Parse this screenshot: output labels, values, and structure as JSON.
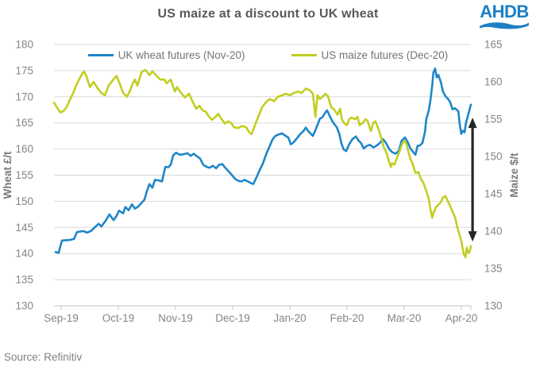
{
  "header": {
    "logo_text": "AHDB"
  },
  "footer": {
    "source": "Source: Refinitiv"
  },
  "chart_data": {
    "type": "line",
    "title": "US maize at a discount to UK wheat",
    "legend_position": "top",
    "grid": "horizontal",
    "left_axis": {
      "label": "Wheat £/t",
      "min": 130,
      "max": 180,
      "step": 5,
      "ticks": [
        180,
        175,
        170,
        165,
        160,
        155,
        150,
        145,
        140,
        135,
        130
      ]
    },
    "right_axis": {
      "label": "Maize $/t",
      "min": 130,
      "max": 165,
      "step": 5,
      "ticks": [
        165,
        160,
        155,
        150,
        145,
        140,
        135,
        130
      ]
    },
    "x_ticks": [
      "Sep-19",
      "Oct-19",
      "Nov-19",
      "Dec-19",
      "Jan-20",
      "Feb-20",
      "Mar-20",
      "Apr-20"
    ],
    "series": [
      {
        "name": "UK wheat futures (Nov-20)",
        "color": "#1e86c8",
        "axis": "left",
        "points": [
          [
            0.004,
            140.3
          ],
          [
            0.011,
            140.1
          ],
          [
            0.019,
            142.5
          ],
          [
            0.038,
            142.6
          ],
          [
            0.048,
            142.8
          ],
          [
            0.055,
            144.1
          ],
          [
            0.07,
            144.3
          ],
          [
            0.08,
            144.0
          ],
          [
            0.09,
            144.4
          ],
          [
            0.099,
            145.1
          ],
          [
            0.107,
            145.7
          ],
          [
            0.114,
            145.2
          ],
          [
            0.124,
            146.3
          ],
          [
            0.133,
            147.5
          ],
          [
            0.143,
            146.4
          ],
          [
            0.15,
            147.2
          ],
          [
            0.156,
            148.2
          ],
          [
            0.166,
            147.7
          ],
          [
            0.171,
            148.9
          ],
          [
            0.179,
            148.3
          ],
          [
            0.187,
            149.4
          ],
          [
            0.194,
            148.6
          ],
          [
            0.202,
            149.0
          ],
          [
            0.21,
            149.7
          ],
          [
            0.217,
            150.3
          ],
          [
            0.223,
            152.0
          ],
          [
            0.229,
            153.3
          ],
          [
            0.236,
            152.6
          ],
          [
            0.242,
            154.1
          ],
          [
            0.251,
            154.0
          ],
          [
            0.259,
            153.8
          ],
          [
            0.267,
            156.6
          ],
          [
            0.274,
            156.5
          ],
          [
            0.28,
            157.0
          ],
          [
            0.286,
            158.8
          ],
          [
            0.293,
            159.3
          ],
          [
            0.301,
            158.9
          ],
          [
            0.31,
            159.0
          ],
          [
            0.32,
            159.2
          ],
          [
            0.328,
            158.7
          ],
          [
            0.335,
            159.1
          ],
          [
            0.343,
            158.6
          ],
          [
            0.35,
            158.2
          ],
          [
            0.358,
            157.0
          ],
          [
            0.366,
            156.6
          ],
          [
            0.373,
            156.4
          ],
          [
            0.381,
            156.8
          ],
          [
            0.389,
            156.3
          ],
          [
            0.396,
            157.0
          ],
          [
            0.404,
            157.1
          ],
          [
            0.411,
            156.4
          ],
          [
            0.419,
            155.7
          ],
          [
            0.427,
            155.0
          ],
          [
            0.434,
            154.3
          ],
          [
            0.442,
            153.9
          ],
          [
            0.45,
            153.8
          ],
          [
            0.457,
            154.1
          ],
          [
            0.465,
            153.8
          ],
          [
            0.472,
            153.5
          ],
          [
            0.478,
            153.3
          ],
          [
            0.486,
            154.6
          ],
          [
            0.493,
            155.9
          ],
          [
            0.501,
            157.2
          ],
          [
            0.509,
            159.0
          ],
          [
            0.516,
            160.3
          ],
          [
            0.524,
            161.8
          ],
          [
            0.531,
            162.5
          ],
          [
            0.539,
            162.8
          ],
          [
            0.547,
            163.0
          ],
          [
            0.554,
            162.6
          ],
          [
            0.562,
            162.2
          ],
          [
            0.568,
            160.9
          ],
          [
            0.575,
            161.3
          ],
          [
            0.583,
            162.1
          ],
          [
            0.59,
            162.8
          ],
          [
            0.598,
            163.4
          ],
          [
            0.604,
            164.1
          ],
          [
            0.61,
            163.4
          ],
          [
            0.615,
            163.0
          ],
          [
            0.621,
            162.5
          ],
          [
            0.627,
            163.6
          ],
          [
            0.632,
            164.6
          ],
          [
            0.638,
            165.8
          ],
          [
            0.644,
            166.1
          ],
          [
            0.65,
            166.9
          ],
          [
            0.655,
            167.4
          ],
          [
            0.661,
            166.4
          ],
          [
            0.667,
            165.4
          ],
          [
            0.672,
            164.8
          ],
          [
            0.678,
            164.2
          ],
          [
            0.684,
            163.0
          ],
          [
            0.69,
            160.9
          ],
          [
            0.695,
            159.9
          ],
          [
            0.701,
            159.6
          ],
          [
            0.708,
            160.9
          ],
          [
            0.716,
            161.9
          ],
          [
            0.724,
            162.4
          ],
          [
            0.731,
            161.6
          ],
          [
            0.737,
            161.1
          ],
          [
            0.743,
            160.1
          ],
          [
            0.75,
            160.6
          ],
          [
            0.758,
            160.8
          ],
          [
            0.766,
            160.3
          ],
          [
            0.773,
            160.6
          ],
          [
            0.781,
            161.1
          ],
          [
            0.789,
            161.9
          ],
          [
            0.796,
            161.2
          ],
          [
            0.804,
            160.0
          ],
          [
            0.811,
            159.4
          ],
          [
            0.819,
            159.1
          ],
          [
            0.827,
            159.6
          ],
          [
            0.834,
            161.6
          ],
          [
            0.842,
            162.2
          ],
          [
            0.848,
            161.4
          ],
          [
            0.855,
            160.1
          ],
          [
            0.861,
            159.5
          ],
          [
            0.867,
            158.9
          ],
          [
            0.872,
            160.6
          ],
          [
            0.878,
            160.7
          ],
          [
            0.884,
            161.2
          ],
          [
            0.89,
            163.4
          ],
          [
            0.893,
            165.7
          ],
          [
            0.899,
            167.4
          ],
          [
            0.903,
            169.4
          ],
          [
            0.907,
            172.0
          ],
          [
            0.91,
            174.6
          ],
          [
            0.914,
            175.4
          ],
          [
            0.918,
            173.7
          ],
          [
            0.922,
            174.2
          ],
          [
            0.928,
            172.8
          ],
          [
            0.933,
            171.0
          ],
          [
            0.939,
            170.1
          ],
          [
            0.945,
            169.6
          ],
          [
            0.95,
            169.0
          ],
          [
            0.956,
            167.6
          ],
          [
            0.962,
            167.8
          ],
          [
            0.97,
            167.2
          ],
          [
            0.973,
            164.9
          ],
          [
            0.977,
            162.9
          ],
          [
            0.981,
            163.5
          ],
          [
            0.985,
            163.2
          ],
          [
            0.988,
            164.9
          ],
          [
            0.992,
            166.1
          ],
          [
            0.996,
            167.3
          ],
          [
            1.0,
            168.5
          ]
        ]
      },
      {
        "name": "US maize futures (Dec-20)",
        "color": "#c2ce21",
        "axis": "right",
        "points": [
          [
            0.0,
            157.2
          ],
          [
            0.008,
            156.5
          ],
          [
            0.015,
            155.9
          ],
          [
            0.023,
            156.1
          ],
          [
            0.03,
            156.6
          ],
          [
            0.038,
            157.6
          ],
          [
            0.046,
            158.5
          ],
          [
            0.053,
            159.5
          ],
          [
            0.061,
            160.4
          ],
          [
            0.069,
            161.2
          ],
          [
            0.072,
            161.4
          ],
          [
            0.078,
            160.7
          ],
          [
            0.086,
            159.3
          ],
          [
            0.095,
            160.0
          ],
          [
            0.105,
            159.1
          ],
          [
            0.114,
            158.5
          ],
          [
            0.122,
            158.2
          ],
          [
            0.131,
            159.5
          ],
          [
            0.141,
            160.2
          ],
          [
            0.15,
            160.8
          ],
          [
            0.156,
            160.0
          ],
          [
            0.166,
            158.5
          ],
          [
            0.175,
            158.0
          ],
          [
            0.183,
            158.9
          ],
          [
            0.189,
            159.8
          ],
          [
            0.194,
            160.3
          ],
          [
            0.2,
            159.5
          ],
          [
            0.21,
            161.3
          ],
          [
            0.219,
            161.6
          ],
          [
            0.229,
            160.9
          ],
          [
            0.236,
            161.4
          ],
          [
            0.246,
            160.8
          ],
          [
            0.255,
            160.3
          ],
          [
            0.265,
            160.3
          ],
          [
            0.27,
            159.8
          ],
          [
            0.28,
            160.3
          ],
          [
            0.29,
            158.7
          ],
          [
            0.295,
            159.3
          ],
          [
            0.305,
            158.5
          ],
          [
            0.314,
            157.9
          ],
          [
            0.324,
            158.4
          ],
          [
            0.333,
            157.3
          ],
          [
            0.341,
            156.4
          ],
          [
            0.349,
            156.8
          ],
          [
            0.356,
            156.2
          ],
          [
            0.364,
            156.0
          ],
          [
            0.371,
            155.4
          ],
          [
            0.379,
            154.9
          ],
          [
            0.387,
            155.3
          ],
          [
            0.394,
            155.7
          ],
          [
            0.402,
            155.0
          ],
          [
            0.41,
            154.4
          ],
          [
            0.417,
            154.7
          ],
          [
            0.425,
            154.5
          ],
          [
            0.432,
            153.9
          ],
          [
            0.442,
            153.8
          ],
          [
            0.451,
            154.1
          ],
          [
            0.461,
            153.9
          ],
          [
            0.469,
            153.2
          ],
          [
            0.474,
            153.0
          ],
          [
            0.484,
            154.5
          ],
          [
            0.493,
            155.7
          ],
          [
            0.499,
            156.6
          ],
          [
            0.509,
            157.3
          ],
          [
            0.518,
            157.7
          ],
          [
            0.528,
            157.4
          ],
          [
            0.537,
            158.0
          ],
          [
            0.547,
            158.2
          ],
          [
            0.556,
            158.4
          ],
          [
            0.566,
            158.2
          ],
          [
            0.575,
            158.5
          ],
          [
            0.585,
            158.7
          ],
          [
            0.594,
            158.5
          ],
          [
            0.604,
            159.1
          ],
          [
            0.613,
            158.9
          ],
          [
            0.621,
            158.4
          ],
          [
            0.627,
            155.3
          ],
          [
            0.632,
            158.2
          ],
          [
            0.638,
            157.7
          ],
          [
            0.646,
            158.1
          ],
          [
            0.651,
            158.4
          ],
          [
            0.657,
            158.1
          ],
          [
            0.665,
            156.6
          ],
          [
            0.672,
            156.3
          ],
          [
            0.68,
            155.6
          ],
          [
            0.686,
            156.4
          ],
          [
            0.691,
            154.9
          ],
          [
            0.697,
            154.4
          ],
          [
            0.703,
            154.2
          ],
          [
            0.708,
            155.0
          ],
          [
            0.714,
            155.2
          ],
          [
            0.722,
            155.0
          ],
          [
            0.728,
            155.3
          ],
          [
            0.733,
            154.2
          ],
          [
            0.741,
            154.5
          ],
          [
            0.747,
            155.0
          ],
          [
            0.752,
            154.8
          ],
          [
            0.76,
            153.4
          ],
          [
            0.766,
            154.5
          ],
          [
            0.771,
            154.7
          ],
          [
            0.779,
            153.6
          ],
          [
            0.785,
            152.5
          ],
          [
            0.79,
            151.4
          ],
          [
            0.798,
            150.4
          ],
          [
            0.804,
            149.3
          ],
          [
            0.808,
            148.6
          ],
          [
            0.811,
            149.1
          ],
          [
            0.817,
            148.9
          ],
          [
            0.823,
            149.9
          ],
          [
            0.829,
            150.7
          ],
          [
            0.836,
            151.8
          ],
          [
            0.842,
            152.1
          ],
          [
            0.846,
            151.6
          ],
          [
            0.851,
            150.4
          ],
          [
            0.855,
            149.7
          ],
          [
            0.861,
            148.9
          ],
          [
            0.867,
            147.8
          ],
          [
            0.874,
            147.9
          ],
          [
            0.88,
            147.0
          ],
          [
            0.886,
            146.5
          ],
          [
            0.893,
            145.4
          ],
          [
            0.899,
            144.3
          ],
          [
            0.903,
            142.9
          ],
          [
            0.907,
            141.8
          ],
          [
            0.91,
            142.4
          ],
          [
            0.916,
            143.2
          ],
          [
            0.922,
            143.5
          ],
          [
            0.928,
            143.9
          ],
          [
            0.933,
            144.5
          ],
          [
            0.939,
            144.7
          ],
          [
            0.945,
            144.0
          ],
          [
            0.95,
            143.4
          ],
          [
            0.956,
            142.6
          ],
          [
            0.962,
            141.9
          ],
          [
            0.967,
            140.6
          ],
          [
            0.973,
            139.5
          ],
          [
            0.977,
            138.7
          ],
          [
            0.983,
            136.9
          ],
          [
            0.987,
            136.5
          ],
          [
            0.99,
            137.8
          ],
          [
            0.994,
            137.1
          ],
          [
            0.998,
            137.4
          ],
          [
            1.0,
            138.0
          ]
        ]
      }
    ],
    "annotation_arrow": {
      "description": "vertical double-headed arrow showing maize discount to wheat",
      "x_fraction": 1.004,
      "axis": "right",
      "top_value": 155.2,
      "bottom_value": 138.6,
      "color": "#262626"
    }
  }
}
